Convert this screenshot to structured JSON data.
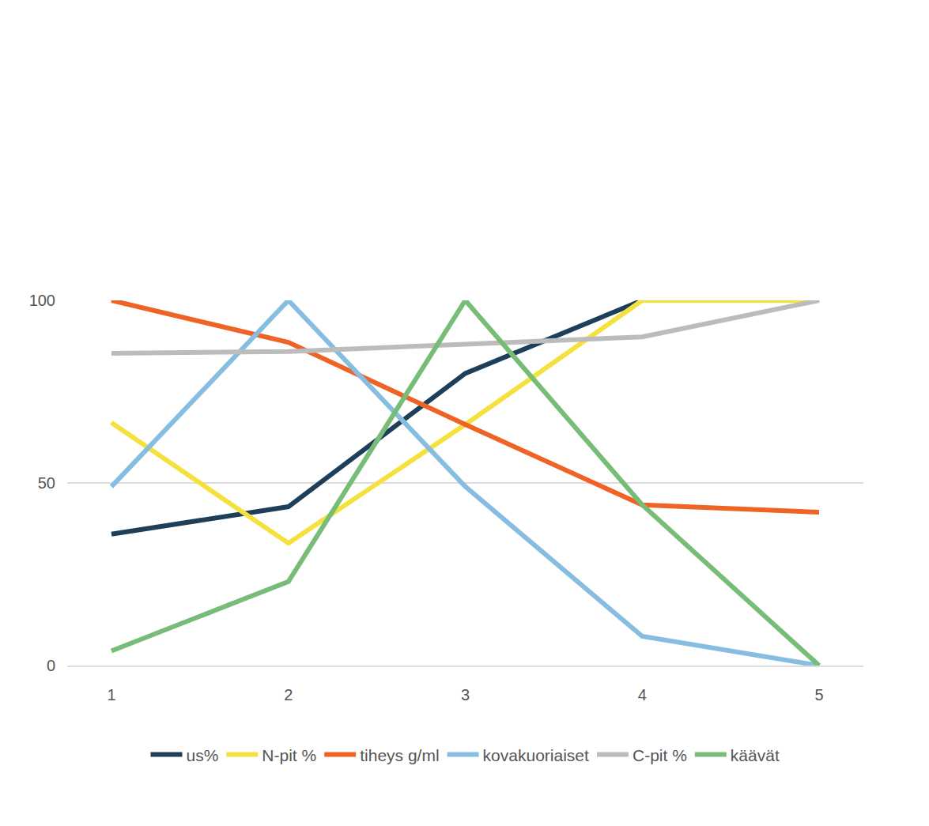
{
  "chart_data": {
    "type": "line",
    "x": [
      1,
      2,
      3,
      4,
      5
    ],
    "xlim": [
      0.75,
      5.25
    ],
    "xticks": [
      1,
      2,
      3,
      4,
      5
    ],
    "ylim": [
      0,
      100
    ],
    "yticks": [
      0,
      50,
      100
    ],
    "grid": true,
    "legend": "bottom",
    "series": [
      {
        "name": "us%",
        "color": "#1e3f5a",
        "values": [
          36,
          43.5,
          80,
          100,
          100
        ]
      },
      {
        "name": "N-pit %",
        "color": "#f5e13c",
        "values": [
          66.5,
          33.5,
          66,
          100,
          100
        ]
      },
      {
        "name": "tiheys g/ml",
        "color": "#ef6327",
        "values": [
          100,
          88.5,
          66,
          44,
          42
        ]
      },
      {
        "name": "kovakuoriaiset",
        "color": "#86bde1",
        "values": [
          49,
          100,
          49,
          8,
          0
        ]
      },
      {
        "name": "C-pit %",
        "color": "#bcbcbc",
        "values": [
          85.5,
          86,
          88,
          90,
          100
        ]
      },
      {
        "name": "käävät",
        "color": "#77bc77",
        "values": [
          4,
          23,
          100,
          44,
          0
        ]
      }
    ]
  }
}
